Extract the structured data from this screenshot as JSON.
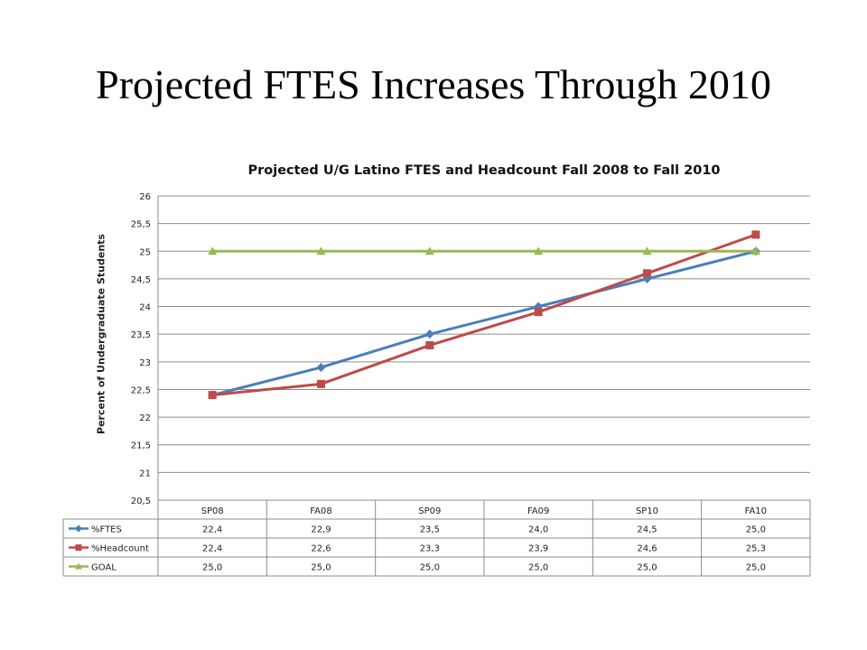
{
  "slide": {
    "title": "Projected FTES Increases Through 2010"
  },
  "chart_data": {
    "type": "line",
    "title": "Projected U/G Latino FTES and Headcount Fall 2008 to Fall 2010",
    "ylabel": "Percent of Undergraduate Students",
    "xlabel": "",
    "categories": [
      "SP08",
      "FA08",
      "SP09",
      "FA09",
      "SP10",
      "FA10"
    ],
    "ylim": [
      20.5,
      26
    ],
    "yticks": [
      20.5,
      21,
      21.5,
      22,
      22.5,
      23,
      23.5,
      24,
      24.5,
      25,
      25.5,
      26
    ],
    "ytick_labels": [
      "20,5",
      "21",
      "21,5",
      "22",
      "22,5",
      "23",
      "23,5",
      "24",
      "24,5",
      "25",
      "25,5",
      "26"
    ],
    "grid": true,
    "legend": "data-table-below",
    "series": [
      {
        "name": "%FTES",
        "color": "#4a7ebb",
        "marker": "diamond",
        "values": [
          22.4,
          22.9,
          23.5,
          24.0,
          24.5,
          25.0
        ],
        "labels": [
          "22,4",
          "22,9",
          "23,5",
          "24,0",
          "24,5",
          "25,0"
        ]
      },
      {
        "name": "%Headcount",
        "color": "#be4b48",
        "marker": "square",
        "values": [
          22.4,
          22.6,
          23.3,
          23.9,
          24.6,
          25.3
        ],
        "labels": [
          "22,4",
          "22,6",
          "23,3",
          "23,9",
          "24,6",
          "25,3"
        ]
      },
      {
        "name": "GOAL",
        "color": "#98b954",
        "marker": "triangle",
        "values": [
          25.0,
          25.0,
          25.0,
          25.0,
          25.0,
          25.0
        ],
        "labels": [
          "25,0",
          "25,0",
          "25,0",
          "25,0",
          "25,0",
          "25,0"
        ]
      }
    ]
  }
}
